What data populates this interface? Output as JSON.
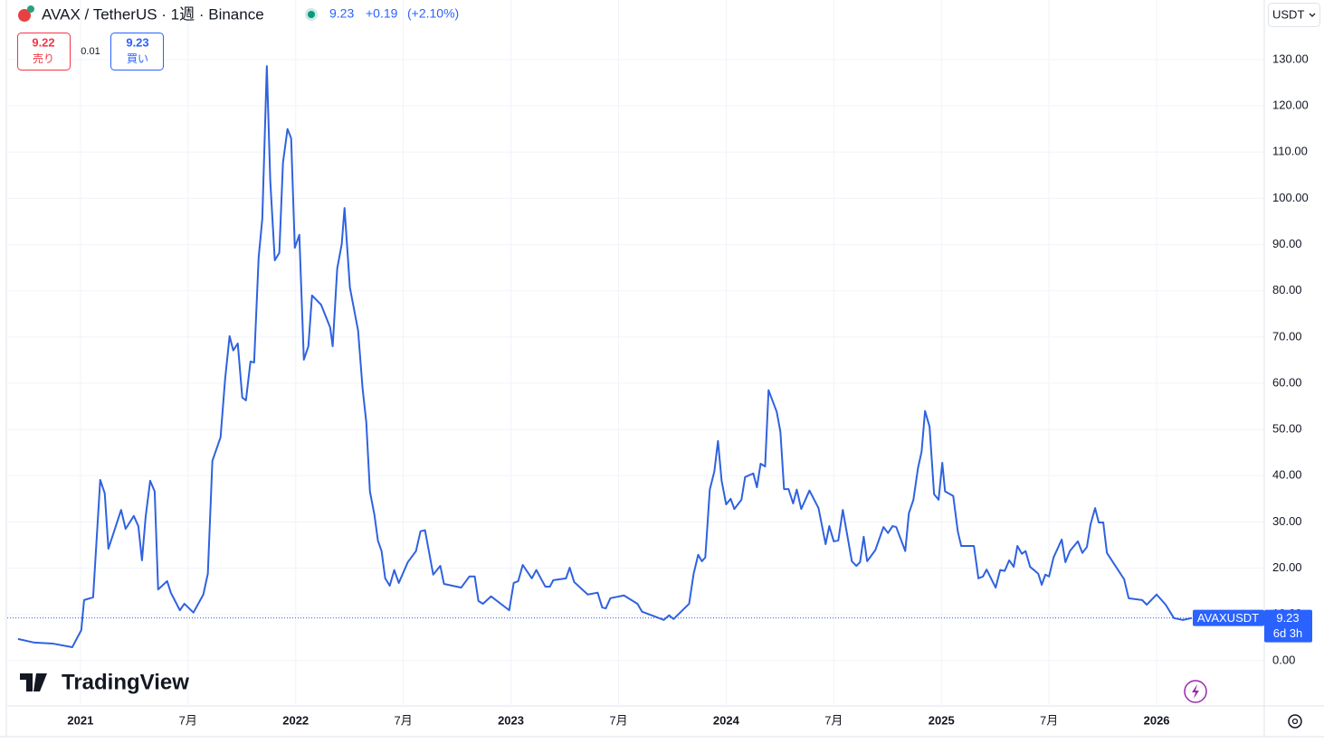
{
  "header": {
    "symbol": "AVAX / TetherUS · 1週 · Binance",
    "price": "9.23",
    "change": "+0.19",
    "change_pct": "(+2.10%)",
    "sell_price": "9.22",
    "sell_label": "売り",
    "spread": "0.01",
    "buy_price": "9.23",
    "buy_label": "買い",
    "currency": "USDT",
    "logo": "TradingView"
  },
  "chart_data": {
    "type": "line",
    "countdown": "6d 3h",
    "xlim": [
      2020.66,
      2026.5
    ],
    "xticks": [
      {
        "value": 2021,
        "label": "2021"
      },
      {
        "value": 2021.5,
        "label": "7月"
      },
      {
        "value": 2022,
        "label": "2022"
      },
      {
        "value": 2022.5,
        "label": "7月"
      },
      {
        "value": 2023,
        "label": "2023"
      },
      {
        "value": 2023.5,
        "label": "7月"
      },
      {
        "value": 2024,
        "label": "2024"
      },
      {
        "value": 2024.5,
        "label": "7月"
      },
      {
        "value": 2025,
        "label": "2025"
      },
      {
        "value": 2025.5,
        "label": "7月"
      },
      {
        "value": 2026,
        "label": "2026"
      }
    ],
    "ylim": [
      -9.8,
      142.9
    ],
    "yticks": [
      {
        "value": 0,
        "label": "0.00"
      },
      {
        "value": 10,
        "label": "10.00"
      },
      {
        "value": 20,
        "label": "20.00"
      },
      {
        "value": 30,
        "label": "30.00"
      },
      {
        "value": 40,
        "label": "40.00"
      },
      {
        "value": 50,
        "label": "50.00"
      },
      {
        "value": 60,
        "label": "60.00"
      },
      {
        "value": 70,
        "label": "70.00"
      },
      {
        "value": 80,
        "label": "80.00"
      },
      {
        "value": 90,
        "label": "90.00"
      },
      {
        "value": 100,
        "label": "100.00"
      },
      {
        "value": 110,
        "label": "110.00"
      },
      {
        "value": 120,
        "label": "120.00"
      },
      {
        "value": 130,
        "label": "130.00"
      }
    ],
    "grid": true,
    "x": [
      2020.71,
      2020.786,
      2020.87,
      2020.962,
      2021.004,
      2021.017,
      2021.059,
      2021.092,
      2021.113,
      2021.13,
      2021.189,
      2021.21,
      2021.248,
      2021.269,
      2021.286,
      2021.303,
      2021.324,
      2021.345,
      2021.361,
      2021.403,
      2021.42,
      2021.462,
      2021.483,
      2021.525,
      2021.571,
      2021.592,
      2021.613,
      2021.651,
      2021.672,
      2021.693,
      2021.71,
      2021.731,
      2021.752,
      2021.769,
      2021.79,
      2021.807,
      2021.828,
      2021.845,
      2021.866,
      2021.882,
      2021.903,
      2021.924,
      2021.941,
      2021.962,
      2021.979,
      2021.996,
      2022.017,
      2022.038,
      2022.059,
      2022.076,
      2022.118,
      2022.16,
      2022.172,
      2022.193,
      2022.214,
      2022.227,
      2022.252,
      2022.29,
      2022.311,
      2022.328,
      2022.345,
      2022.366,
      2022.382,
      2022.399,
      2022.416,
      2022.437,
      2022.458,
      2022.479,
      2022.521,
      2022.559,
      2022.58,
      2022.601,
      2022.639,
      2022.672,
      2022.689,
      2022.769,
      2022.807,
      2022.832,
      2022.849,
      2022.87,
      2022.908,
      2022.992,
      2023.013,
      2023.034,
      2023.055,
      2023.097,
      2023.118,
      2023.16,
      2023.181,
      2023.197,
      2023.256,
      2023.273,
      2023.294,
      2023.357,
      2023.403,
      2023.424,
      2023.441,
      2023.462,
      2023.525,
      2023.588,
      2023.609,
      2023.71,
      2023.735,
      2023.756,
      2023.828,
      2023.849,
      2023.87,
      2023.887,
      2023.903,
      2023.924,
      2023.945,
      2023.962,
      2023.979,
      2024.0,
      2024.021,
      2024.038,
      2024.071,
      2024.088,
      2024.126,
      2024.143,
      2024.16,
      2024.181,
      2024.197,
      2024.235,
      2024.252,
      2024.269,
      2024.29,
      2024.311,
      2024.328,
      2024.349,
      2024.387,
      2024.429,
      2024.462,
      2024.479,
      2024.5,
      2024.521,
      2024.542,
      2024.584,
      2024.605,
      2024.622,
      2024.639,
      2024.655,
      2024.693,
      2024.731,
      2024.752,
      2024.773,
      2024.79,
      2024.832,
      2024.849,
      2024.87,
      2024.891,
      2024.908,
      2024.924,
      2024.945,
      2024.966,
      2024.987,
      2025.004,
      2025.017,
      2025.055,
      2025.076,
      2025.092,
      2025.151,
      2025.172,
      2025.193,
      2025.21,
      2025.252,
      2025.273,
      2025.294,
      2025.315,
      2025.336,
      2025.353,
      2025.374,
      2025.391,
      2025.412,
      2025.45,
      2025.466,
      2025.483,
      2025.5,
      2025.521,
      2025.559,
      2025.576,
      2025.597,
      2025.634,
      2025.655,
      2025.676,
      2025.693,
      2025.714,
      2025.731,
      2025.752,
      2025.769,
      2025.811,
      2025.849,
      2025.87,
      2025.933,
      2025.954,
      2026.0,
      2026.042,
      2026.08,
      2026.122,
      2026.164
    ],
    "series": [
      {
        "name": "AVAXUSDT",
        "color": "#2f62e0",
        "values": [
          4.7,
          3.9,
          3.7,
          2.9,
          6.6,
          13.1,
          13.7,
          39.1,
          36.2,
          24.2,
          32.6,
          28.5,
          31.3,
          29.1,
          21.7,
          31.1,
          38.9,
          36.6,
          15.4,
          17.2,
          14.7,
          10.9,
          12.3,
          10.4,
          14.3,
          18.8,
          43.2,
          48.3,
          60.8,
          70.2,
          67.1,
          68.6,
          56.9,
          56.3,
          64.7,
          64.5,
          87.2,
          95.6,
          128.6,
          103.8,
          86.6,
          88.2,
          107.7,
          115.0,
          113.0,
          89.3,
          92.1,
          65.1,
          68.0,
          79.0,
          77.0,
          72.1,
          68.0,
          84.8,
          90.1,
          97.9,
          80.7,
          71.4,
          58.8,
          51.6,
          36.6,
          31.5,
          26.0,
          23.7,
          17.8,
          16.2,
          19.6,
          16.8,
          21.3,
          23.7,
          28.0,
          28.2,
          18.6,
          20.5,
          16.6,
          15.8,
          18.2,
          18.2,
          12.9,
          12.3,
          13.9,
          10.9,
          16.8,
          17.2,
          20.7,
          17.8,
          19.6,
          16.0,
          16.0,
          17.4,
          17.8,
          20.1,
          17.0,
          14.3,
          14.7,
          11.5,
          11.3,
          13.5,
          14.1,
          12.3,
          10.6,
          8.8,
          9.8,
          9.0,
          12.3,
          18.8,
          22.9,
          21.5,
          22.3,
          37.0,
          40.9,
          47.5,
          38.9,
          33.8,
          35.0,
          32.8,
          34.8,
          39.7,
          40.5,
          37.5,
          42.6,
          42.0,
          58.5,
          53.8,
          49.5,
          37.1,
          37.1,
          34.0,
          37.0,
          32.8,
          36.8,
          33.0,
          25.2,
          29.1,
          25.8,
          26.0,
          32.6,
          21.5,
          20.5,
          21.3,
          26.8,
          21.5,
          23.9,
          28.9,
          27.6,
          29.1,
          28.9,
          23.7,
          31.9,
          34.8,
          41.6,
          45.2,
          54.0,
          50.6,
          36.0,
          34.8,
          42.8,
          36.6,
          35.6,
          28.0,
          24.8,
          24.8,
          17.8,
          18.2,
          19.7,
          15.8,
          19.6,
          19.4,
          21.7,
          20.3,
          24.8,
          23.1,
          23.7,
          20.3,
          18.8,
          16.4,
          18.6,
          18.2,
          22.3,
          26.2,
          21.3,
          23.7,
          25.8,
          23.3,
          24.6,
          29.5,
          33.0,
          29.9,
          29.9,
          23.3,
          20.3,
          17.6,
          13.5,
          13.1,
          12.1,
          14.3,
          12.1,
          9.2,
          8.8,
          9.23
        ]
      }
    ]
  }
}
